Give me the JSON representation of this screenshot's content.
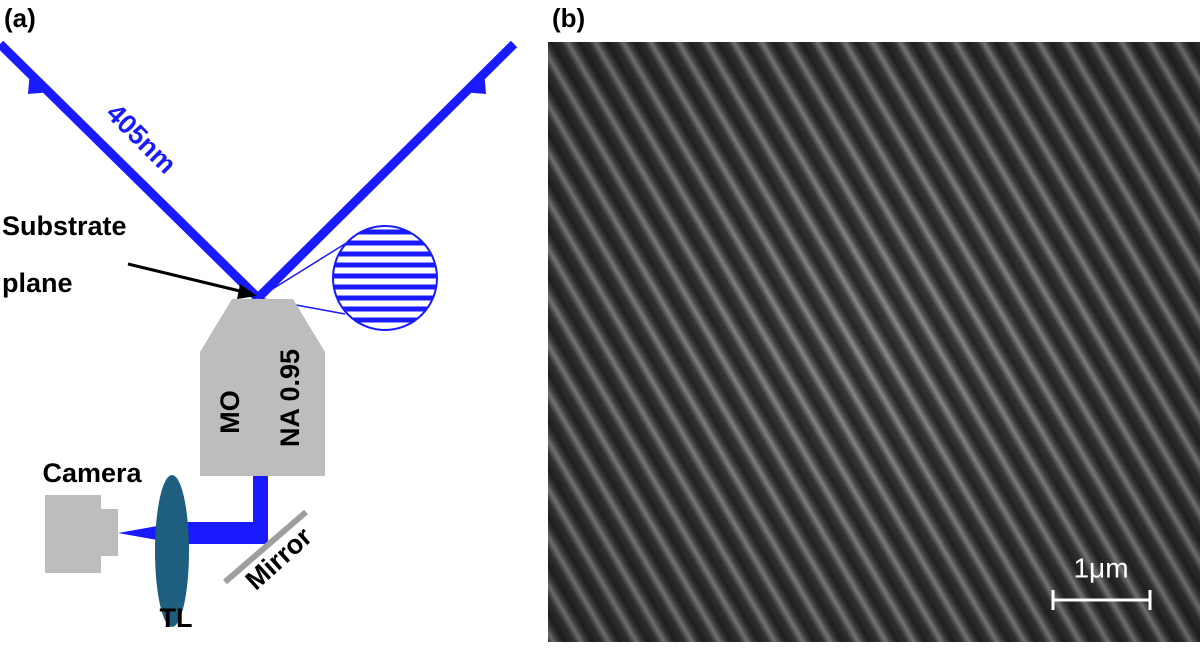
{
  "panel_a": {
    "label": "(a)",
    "wavelength": "405nm",
    "substrate": [
      "Substrate",
      "plane"
    ],
    "objective": [
      "MO",
      "NA 0.95"
    ],
    "camera": "Camera",
    "lens": "TL",
    "mirror": "Mirror"
  },
  "panel_b": {
    "label": "(b)",
    "scale_bar": "1μm"
  }
}
